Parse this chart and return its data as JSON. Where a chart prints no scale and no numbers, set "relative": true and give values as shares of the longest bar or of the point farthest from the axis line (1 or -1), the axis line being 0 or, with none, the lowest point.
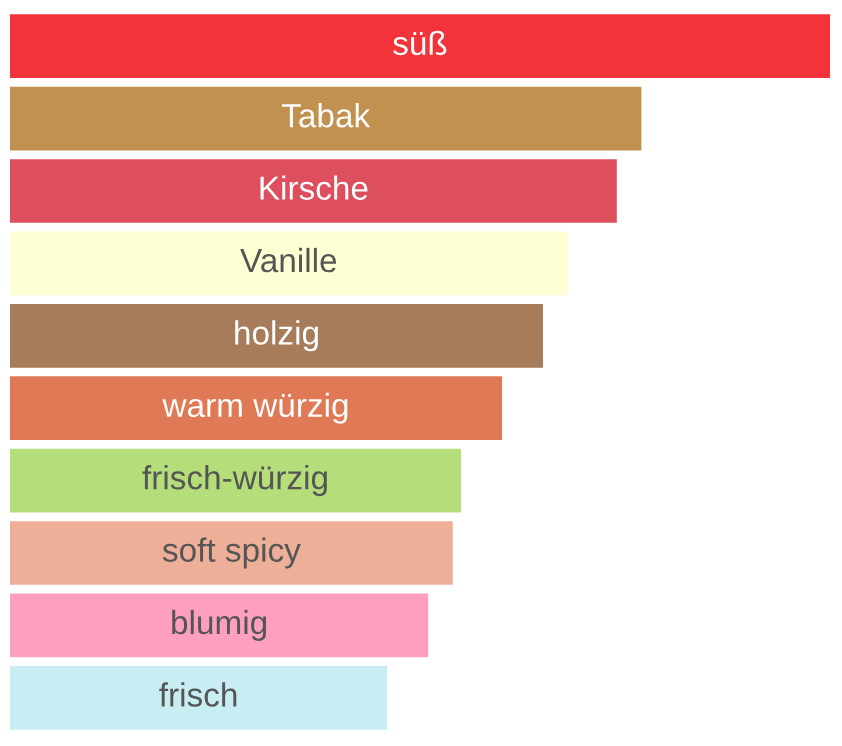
{
  "chart_data": {
    "type": "bar",
    "orientation": "horizontal",
    "relative": true,
    "categories": [
      "süß",
      "Tabak",
      "Kirsche",
      "Vanille",
      "holzig",
      "warm würzig",
      "frisch-würzig",
      "soft spicy",
      "blumig",
      "frisch"
    ],
    "values": [
      1,
      0.77,
      0.74,
      0.68,
      0.65,
      0.6,
      0.55,
      0.54,
      0.51,
      0.46
    ],
    "colors": [
      "#f2333a",
      "#c0914f",
      "#de4f5e",
      "#ffffd4",
      "#a67c5a",
      "#e07a56",
      "#b5de7a",
      "#eeaf98",
      "#ff9fc0",
      "#c8eef3"
    ]
  }
}
